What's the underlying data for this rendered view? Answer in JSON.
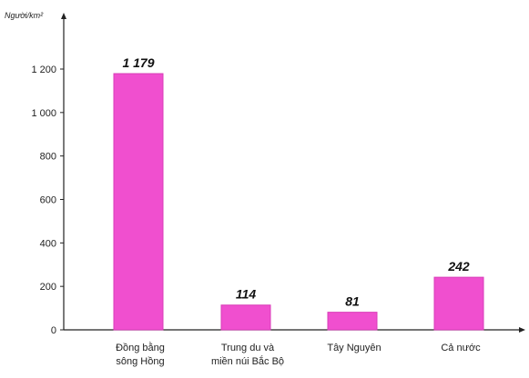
{
  "chart_data": {
    "type": "bar",
    "ylabel": "Người/km²",
    "categories": [
      [
        "Đồng bằng",
        "sông Hồng"
      ],
      [
        "Trung du và",
        "miền núi Bắc Bộ"
      ],
      [
        "Tây Nguyên"
      ],
      [
        "Cả nước"
      ]
    ],
    "values": [
      1179,
      114,
      81,
      242
    ],
    "value_labels": [
      "1 179",
      "114",
      "81",
      "242"
    ],
    "ylim": [
      0,
      1200
    ],
    "yticks": [
      0,
      200,
      400,
      600,
      800,
      1000,
      1200
    ],
    "ytick_labels": [
      "0",
      "200",
      "400",
      "600",
      "800",
      "1 000",
      "1 200"
    ],
    "grid": false,
    "bar_color": "#f04fcf",
    "bar_edge_color": "#d93db8"
  }
}
